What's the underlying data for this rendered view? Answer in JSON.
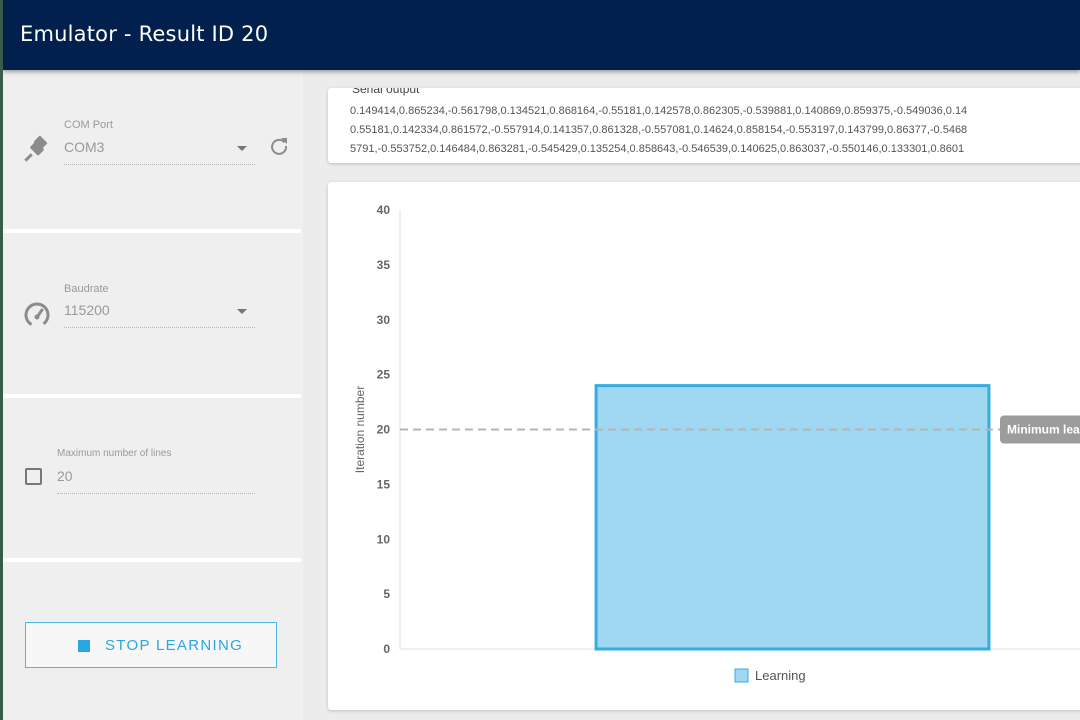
{
  "window": {
    "title": "Emulator - Result ID 20"
  },
  "sidebar": {
    "com_port": {
      "label": "COM Port",
      "value": "COM3",
      "icon": "usb-plug-icon",
      "refresh_icon": "refresh-icon"
    },
    "baudrate": {
      "label": "Baudrate",
      "value": "115200",
      "icon": "speedometer-icon"
    },
    "max_lines": {
      "label": "Maximum number of lines",
      "value": "20",
      "checked": false
    },
    "stop_button": {
      "label": "STOP LEARNING",
      "icon": "stop-square-icon"
    }
  },
  "serial_output": {
    "label": "Serial output",
    "lines": [
      "0.149414,0.865234,-0.561798,0.134521,0.868164,-0.55181,0.142578,0.862305,-0.539881,0.140869,0.859375,-0.549036,0.14",
      "0.55181,0.142334,0.861572,-0.557914,0.141357,0.861328,-0.557081,0.14624,0.858154,-0.553197,0.143799,0.86377,-0.5468",
      "5791,-0.553752,0.146484,0.863281,-0.545429,0.135254,0.858643,-0.546539,0.140625,0.863037,-0.550146,0.133301,0.8601"
    ]
  },
  "chart_data": {
    "type": "bar",
    "categories": [
      ""
    ],
    "series": [
      {
        "name": "Learning",
        "values": [
          24
        ],
        "color": "#a0d8f1",
        "border": "#35ade0"
      }
    ],
    "ylabel": "Iteration number",
    "ylim": [
      0,
      40
    ],
    "yticks": [
      "0",
      "5",
      "10",
      "15",
      "20",
      "25",
      "30",
      "35",
      "40"
    ],
    "reference_line": {
      "value": 20,
      "label": "Minimum lea"
    },
    "legend": {
      "position": "bottom"
    },
    "grid": false
  }
}
